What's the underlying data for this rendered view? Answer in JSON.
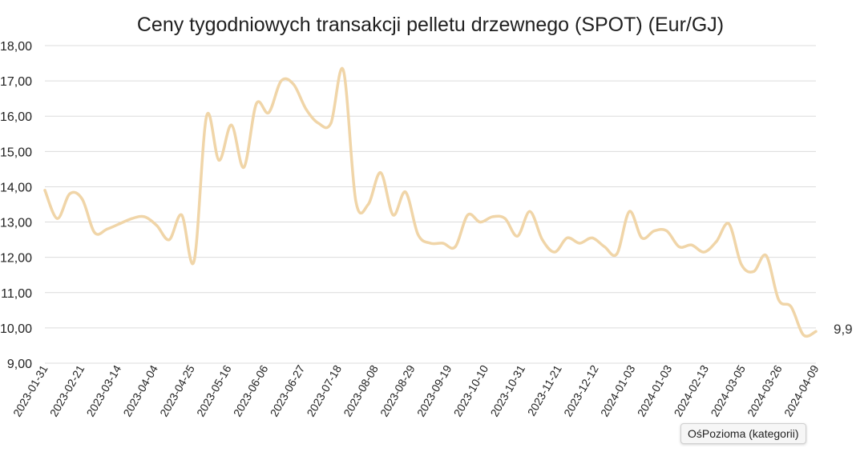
{
  "chart_data": {
    "type": "line",
    "title": "Ceny tygodniowych transakcji pelletu drzewnego (SPOT) (Eur/GJ)",
    "ylim": [
      9,
      18
    ],
    "yticks": [
      "9,00",
      "10,00",
      "11,00",
      "12,00",
      "13,00",
      "14,00",
      "15,00",
      "16,00",
      "17,00",
      "18,00"
    ],
    "ytick_values": [
      9,
      10,
      11,
      12,
      13,
      14,
      15,
      16,
      17,
      18
    ],
    "xtick_labels": [
      "2023-01-31",
      "2023-02-21",
      "2023-03-14",
      "2023-04-04",
      "2023-04-25",
      "2023-05-16",
      "2023-06-06",
      "2023-06-27",
      "2023-07-18",
      "2023-08-08",
      "2023-08-29",
      "2023-09-19",
      "2023-10-10",
      "2023-10-31",
      "2023-11-21",
      "2023-12-12",
      "2024-01-03",
      "2024-01-03",
      "2024-02-13",
      "2024-03-05",
      "2024-03-26",
      "2024-04-09"
    ],
    "grid": true,
    "line_color": "#f0d5a8",
    "series": [
      {
        "values": [
          13.9,
          13.1,
          13.8,
          13.65,
          12.7,
          12.8,
          12.95,
          13.1,
          13.15,
          12.9,
          12.5,
          13.2,
          11.9,
          16.0,
          14.75,
          15.75,
          14.55,
          16.35,
          16.1,
          17.0,
          16.9,
          16.2,
          15.8,
          15.8,
          17.3,
          13.6,
          13.5,
          14.4,
          13.2,
          13.85,
          12.65,
          12.4,
          12.4,
          12.3,
          13.2,
          13.0,
          13.15,
          13.1,
          12.6,
          13.3,
          12.5,
          12.15,
          12.55,
          12.4,
          12.55,
          12.3,
          12.1,
          13.3,
          12.55,
          12.75,
          12.75,
          12.3,
          12.35,
          12.15,
          12.45,
          12.95,
          11.8,
          11.6,
          12.05,
          10.8,
          10.6,
          9.8,
          9.9
        ],
        "end_label": "9,9"
      }
    ]
  },
  "tooltip": {
    "text": "OśPozioma (kategorii)"
  }
}
